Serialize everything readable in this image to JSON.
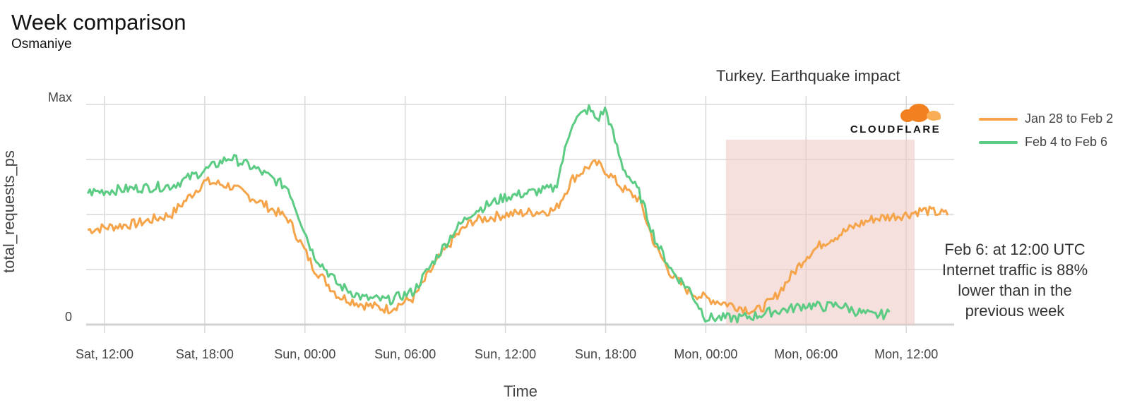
{
  "chart_data": {
    "type": "line",
    "title": "Week comparison",
    "subtitle": "Osmaniye",
    "xlabel": "Time",
    "ylabel": "total_requests_ps",
    "ylim": [
      0,
      1
    ],
    "y_tick_labels": [
      {
        "value": 1,
        "label": "Max"
      },
      {
        "value": 0,
        "label": "0"
      }
    ],
    "y_gridlines": [
      0,
      0.25,
      0.5,
      0.75,
      1
    ],
    "x_hours_range": [
      -2,
      16.75
    ],
    "x_ticks": [
      {
        "h": 0,
        "label": "Sat, 12:00"
      },
      {
        "h": 6,
        "label": "Sat, 18:00"
      },
      {
        "h": 12,
        "label": "Sun, 00:00"
      },
      {
        "h": 18,
        "label": "Sun, 06:00"
      },
      {
        "h": 24,
        "label": "Sun, 12:00"
      },
      {
        "h": 30,
        "label": "Sun, 18:00"
      },
      {
        "h": 36,
        "label": "Mon, 00:00"
      },
      {
        "h": 42,
        "label": "Mon, 06:00"
      },
      {
        "h": 48,
        "label": "Mon, 12:00"
      }
    ],
    "x_hours_from_sat_1200": [
      -1,
      2,
      4,
      6,
      7.5,
      9,
      11,
      12.5,
      14,
      15.5,
      17,
      18.5,
      20,
      21,
      22,
      24,
      25.5,
      27,
      28,
      29,
      29.5,
      30,
      31,
      32,
      33,
      34,
      35,
      36,
      37,
      38,
      39,
      40,
      41,
      42,
      43,
      44,
      45,
      46,
      47,
      48,
      49,
      50.5
    ],
    "series": [
      {
        "name": "Jan 28 to Feb 2",
        "color": "#f6a44a",
        "values": [
          0.43,
          0.46,
          0.5,
          0.65,
          0.63,
          0.57,
          0.48,
          0.26,
          0.13,
          0.09,
          0.07,
          0.12,
          0.3,
          0.4,
          0.47,
          0.5,
          0.51,
          0.52,
          0.66,
          0.72,
          0.73,
          0.7,
          0.62,
          0.57,
          0.35,
          0.22,
          0.15,
          0.12,
          0.1,
          0.08,
          0.06,
          0.11,
          0.21,
          0.31,
          0.37,
          0.41,
          0.45,
          0.48,
          0.49,
          0.5,
          0.52,
          0.5
        ]
      },
      {
        "name": "Feb 4 to Feb 6",
        "color": "#5ccb83",
        "values": [
          0.6,
          0.62,
          0.63,
          0.7,
          0.76,
          0.71,
          0.62,
          0.32,
          0.18,
          0.12,
          0.11,
          0.15,
          0.32,
          0.43,
          0.51,
          0.58,
          0.6,
          0.62,
          0.92,
          0.98,
          0.93,
          0.98,
          0.72,
          0.6,
          0.38,
          0.24,
          0.16,
          0.03,
          0.03,
          0.03,
          0.04,
          0.06,
          0.07,
          0.09,
          0.08,
          0.09,
          0.06,
          0.04,
          0.05
        ]
      }
    ],
    "highlight": {
      "label": "Turkey. Earthquake impact",
      "x_from_h": 37.2,
      "x_to_h": 48.5,
      "y_top": 0.84,
      "color": "#efcbc6"
    },
    "annotation": "Feb 6: at 12:00 UTC Internet traffic is 88% lower than in the previous week",
    "legend_position": "right",
    "grid": true
  },
  "logo": {
    "wordmark": "CLOUDFLARE",
    "color": "#f38020"
  }
}
